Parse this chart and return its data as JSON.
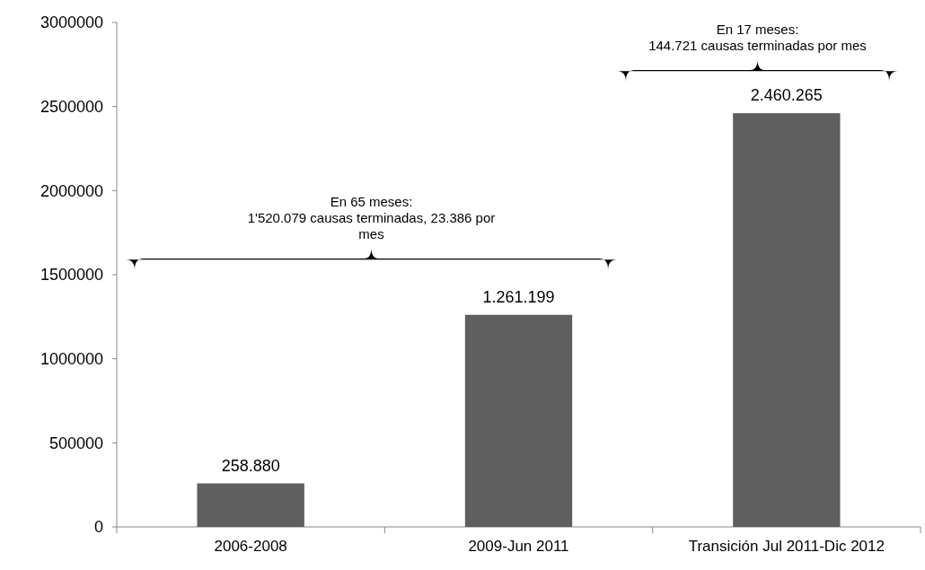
{
  "chart_data": {
    "type": "bar",
    "categories": [
      "2006-2008",
      "2009-Jun 2011",
      "Transición Jul 2011-Dic 2012"
    ],
    "values": [
      258880,
      1261199,
      2460265
    ],
    "color": "#5f5f5f",
    "value_labels": [
      "258.880",
      "1.261.199",
      "2.460.265"
    ],
    "ylim": [
      0,
      3000000
    ],
    "yticks": [
      0,
      500000,
      1000000,
      1500000,
      2000000,
      2500000,
      3000000
    ],
    "annotations": [
      "En 65 meses:\n1'520.079 causas terminadas, 23.386 por\nmes",
      "En 17 meses:\n144.721 causas terminadas por mes"
    ]
  }
}
